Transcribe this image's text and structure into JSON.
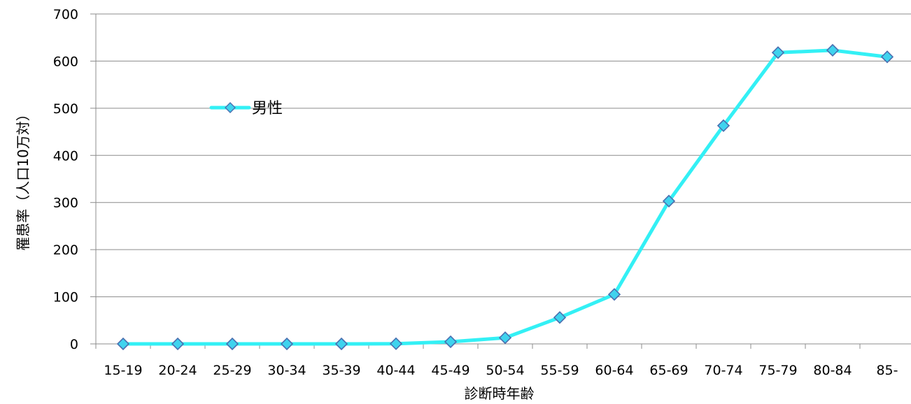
{
  "chart_data": {
    "type": "line",
    "title": "",
    "xlabel": "診断時年齢",
    "ylabel": "罹患率（人口10万対）",
    "categories": [
      "15-19",
      "20-24",
      "25-29",
      "30-34",
      "35-39",
      "40-44",
      "45-49",
      "50-54",
      "55-59",
      "60-64",
      "65-69",
      "70-74",
      "75-79",
      "80-84",
      "85-"
    ],
    "series": [
      {
        "name": "男性",
        "color": "#33f0f5",
        "marker_color": "#3fd3ee",
        "marker_edge": "#4a6fb0",
        "values": [
          0,
          0,
          0,
          0,
          0,
          0.3,
          4.5,
          13,
          56,
          105,
          303,
          463,
          618,
          623,
          609
        ]
      }
    ],
    "ylim": [
      0,
      700
    ],
    "yticks": [
      0,
      100,
      200,
      300,
      400,
      500,
      600,
      700
    ],
    "grid": true,
    "legend_position": "upper-left, inside plot"
  }
}
